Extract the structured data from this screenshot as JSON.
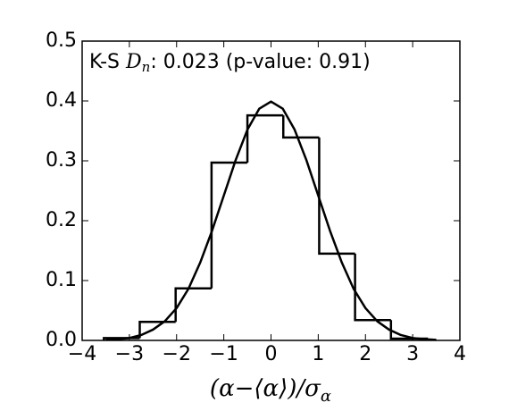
{
  "chart_data": {
    "type": "histogram",
    "bins": [
      -3.54,
      -2.78,
      -2.02,
      -1.26,
      -0.5,
      0.26,
      1.02,
      1.78,
      2.54,
      3.3
    ],
    "values": [
      0.004,
      0.031,
      0.087,
      0.297,
      0.376,
      0.339,
      0.145,
      0.034,
      0.003
    ],
    "color": "#000000",
    "curve": {
      "x": [
        -3.5,
        -3.25,
        -3,
        -2.75,
        -2.5,
        -2.25,
        -2,
        -1.75,
        -1.5,
        -1.25,
        -1,
        -0.75,
        -0.5,
        -0.25,
        0,
        0.25,
        0.5,
        0.75,
        1,
        1.25,
        1.5,
        1.75,
        2,
        2.25,
        2.5,
        2.75,
        3,
        3.25,
        3.5
      ],
      "values": [
        0.001,
        0.002,
        0.004,
        0.009,
        0.018,
        0.032,
        0.054,
        0.086,
        0.13,
        0.183,
        0.242,
        0.301,
        0.352,
        0.387,
        0.399,
        0.387,
        0.352,
        0.301,
        0.242,
        0.183,
        0.13,
        0.086,
        0.054,
        0.032,
        0.018,
        0.009,
        0.004,
        0.002,
        0.001
      ],
      "color": "#000000"
    },
    "annotation": {
      "prefix": "K-S ",
      "symbol": "D",
      "subscript": "n",
      "text": ": 0.023 (p-value: 0.91)"
    },
    "x_label": {
      "text": "(α−⟨α⟩)/σ",
      "subscript": "α"
    },
    "xlim": [
      -4,
      4
    ],
    "xticks": [
      {
        "value": -4,
        "label": "−4"
      },
      {
        "value": -3,
        "label": "−3"
      },
      {
        "value": -2,
        "label": "−2"
      },
      {
        "value": -1,
        "label": "−1"
      },
      0,
      1,
      2,
      3,
      4
    ],
    "ylim": [
      0,
      0.5
    ],
    "yticks": [
      {
        "value": 0,
        "label": "0.0"
      },
      0.1,
      0.2,
      0.3,
      0.4,
      0.5
    ]
  }
}
